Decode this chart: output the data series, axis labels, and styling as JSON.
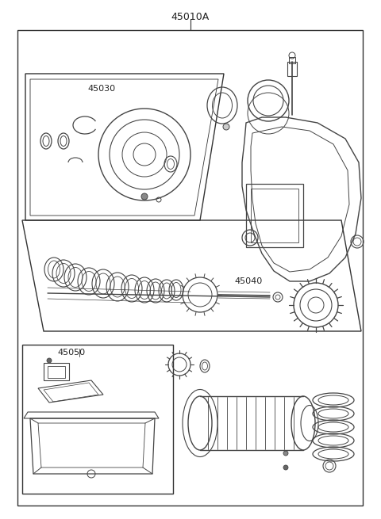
{
  "bg_color": "#ffffff",
  "border_color": "#333333",
  "line_color": "#444444",
  "label_color": "#222222",
  "labels": {
    "main": "45010A",
    "kit1": "45030",
    "kit2": "45040",
    "kit3": "45050"
  },
  "figsize": [
    4.8,
    6.55
  ],
  "dpi": 100
}
